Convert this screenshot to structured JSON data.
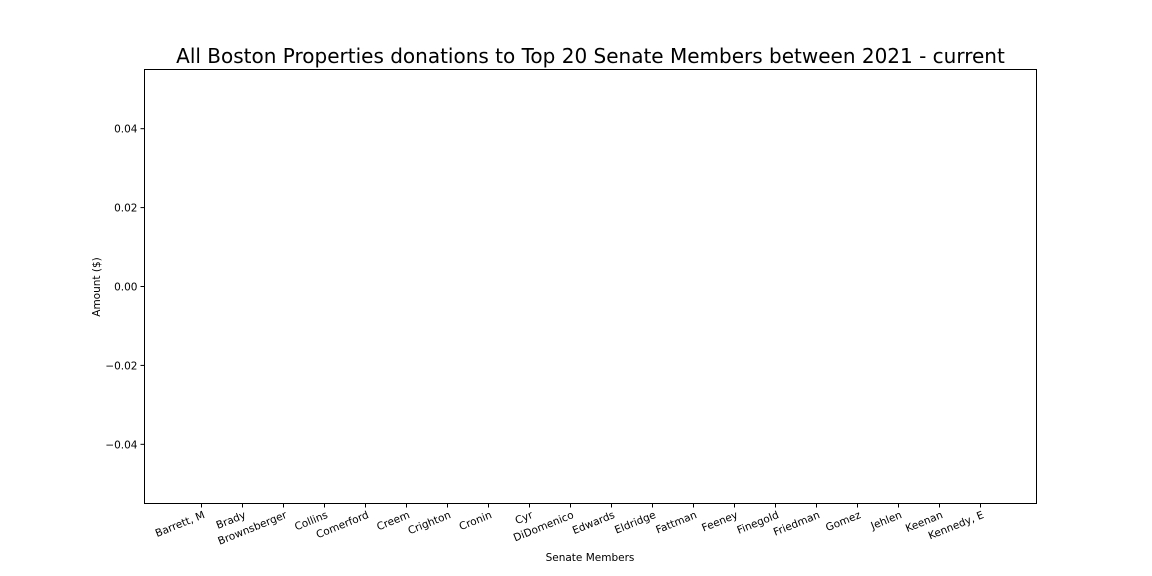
{
  "chart_data": {
    "type": "bar",
    "title": "All Boston Properties donations to Top 20 Senate Members between 2021 - current",
    "xlabel": "Senate Members",
    "ylabel": "Amount ($)",
    "categories": [
      "Barrett, M",
      "Brady",
      "Brownsberger",
      "Collins",
      "Comerford",
      "Creem",
      "Crighton",
      "Cronin",
      "Cyr",
      "DiDomenico",
      "Edwards",
      "Eldridge",
      "Fattman",
      "Feeney",
      "Finegold",
      "Friedman",
      "Gomez",
      "Jehlen",
      "Keenan",
      "Kennedy, E"
    ],
    "values": [
      0,
      0,
      0,
      0,
      0,
      0,
      0,
      0,
      0,
      0,
      0,
      0,
      0,
      0,
      0,
      0,
      0,
      0,
      0,
      0
    ],
    "ylim": [
      -0.055,
      0.055
    ],
    "yticks": [
      0.04,
      0.02,
      0.0,
      -0.02,
      -0.04
    ],
    "ytick_labels": [
      "0.04",
      "0.02",
      "0.00",
      "−0.02",
      "−0.04"
    ],
    "grid": false,
    "legend": "none"
  }
}
